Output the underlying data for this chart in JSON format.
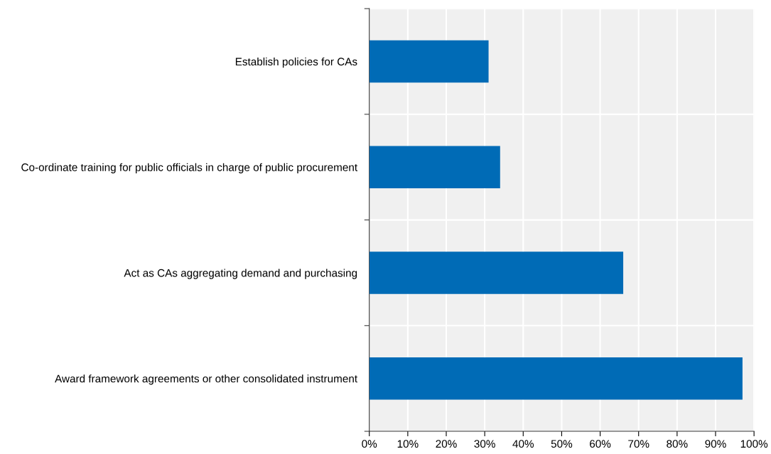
{
  "chart_data": {
    "type": "bar",
    "orientation": "horizontal",
    "categories": [
      "Establish policies for CAs",
      "Co-ordinate training for public officials in charge of public procurement",
      "Act as CAs aggregating demand and purchasing",
      "Award framework agreements or other consolidated instrument"
    ],
    "values": [
      31,
      34,
      66,
      97
    ],
    "color": "#006bb6",
    "xlim": [
      0,
      100
    ],
    "xticks": [
      {
        "value": 0,
        "label": "0%"
      },
      {
        "value": 10,
        "label": "10%"
      },
      {
        "value": 20,
        "label": "20%"
      },
      {
        "value": 30,
        "label": "30%"
      },
      {
        "value": 40,
        "label": "40%"
      },
      {
        "value": 50,
        "label": "50%"
      },
      {
        "value": 60,
        "label": "60%"
      },
      {
        "value": 70,
        "label": "70%"
      },
      {
        "value": 80,
        "label": "80%"
      },
      {
        "value": 90,
        "label": "90%"
      },
      {
        "value": 100,
        "label": "100%"
      }
    ],
    "grid": true
  }
}
